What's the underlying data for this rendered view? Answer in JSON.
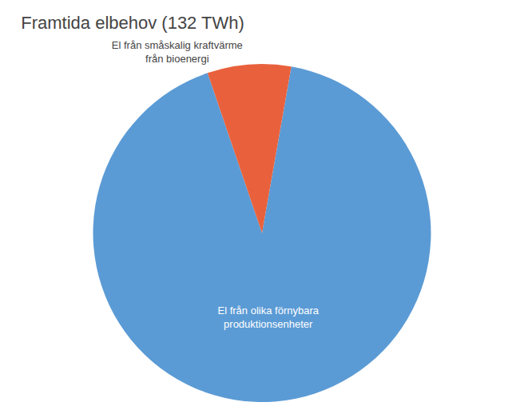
{
  "chart_data": {
    "type": "pie",
    "title": "Framtida elbehov (132 TWh)",
    "categories": [
      "El från olika förnybara\nproduktionsenheter",
      "El från småskalig kraftvärme\nfrån bioenergi"
    ],
    "values": [
      92,
      8
    ],
    "colors": [
      "#5B9BD5",
      "#E8613C"
    ]
  }
}
